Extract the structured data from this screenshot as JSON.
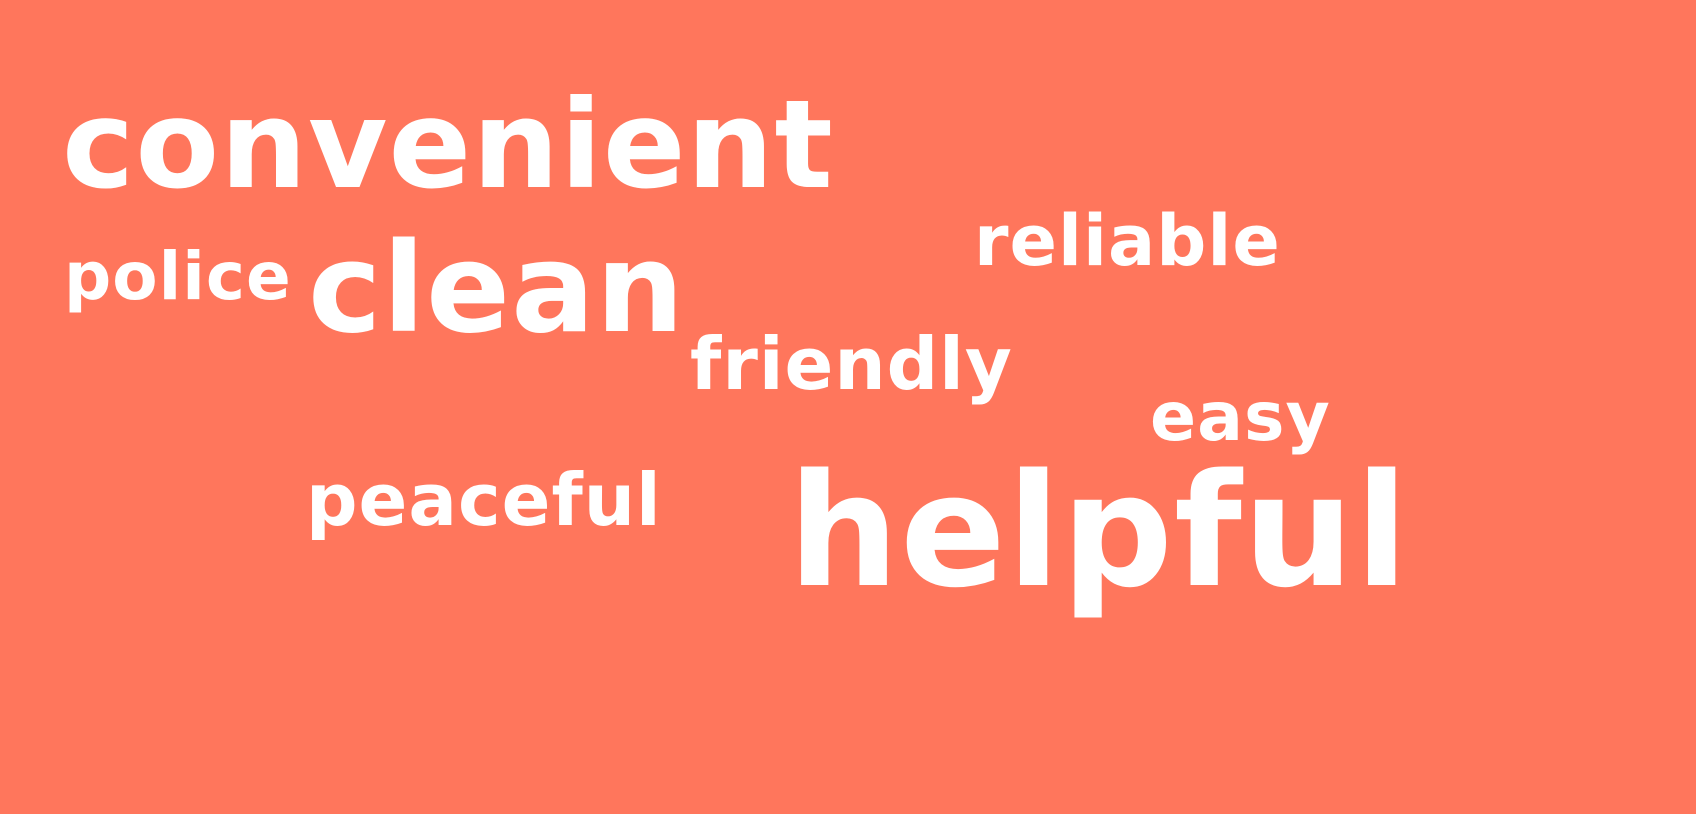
{
  "background_color": "#ff765c",
  "text_color": "#ffffff",
  "words": {
    "convenient": "convenient",
    "police": "police",
    "clean": "clean",
    "reliable": "reliable",
    "friendly": "friendly",
    "easy": "easy",
    "peaceful": "peaceful",
    "helpful": "helpful"
  }
}
